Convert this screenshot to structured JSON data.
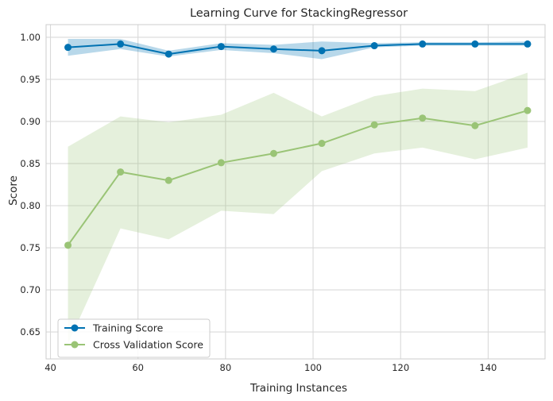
{
  "chart_data": {
    "type": "line",
    "title": "Learning Curve for StackingRegressor",
    "xlabel": "Training Instances",
    "ylabel": "Score",
    "xlim": [
      39,
      153
    ],
    "ylim": [
      0.618,
      1.015
    ],
    "xticks": [
      40,
      60,
      80,
      100,
      120,
      140
    ],
    "yticks": [
      0.65,
      0.7,
      0.75,
      0.8,
      0.85,
      0.9,
      0.95,
      1.0
    ],
    "xtick_labels": [
      "40",
      "60",
      "80",
      "100",
      "120",
      "140"
    ],
    "ytick_labels": [
      "0.65",
      "0.70",
      "0.75",
      "0.80",
      "0.85",
      "0.90",
      "0.95",
      "1.00"
    ],
    "grid": true,
    "legend_position": "bottom-left",
    "x": [
      44,
      56,
      67,
      79,
      91,
      102,
      114,
      125,
      137,
      149
    ],
    "series": [
      {
        "name": "Training Score",
        "color": "#0072b2",
        "band_color": "#0072b2",
        "values": [
          0.988,
          0.992,
          0.98,
          0.989,
          0.986,
          0.984,
          0.99,
          0.992,
          0.992,
          0.992
        ],
        "band_upper": [
          0.998,
          0.998,
          0.984,
          0.993,
          0.991,
          0.995,
          0.993,
          0.994,
          0.994,
          0.995
        ],
        "band_lower": [
          0.978,
          0.986,
          0.977,
          0.985,
          0.981,
          0.974,
          0.988,
          0.99,
          0.99,
          0.99
        ]
      },
      {
        "name": "Cross Validation Score",
        "color": "#9ac476",
        "band_color": "#9ac476",
        "values": [
          0.753,
          0.84,
          0.83,
          0.851,
          0.862,
          0.874,
          0.896,
          0.904,
          0.895,
          0.913
        ],
        "band_upper": [
          0.87,
          0.906,
          0.899,
          0.908,
          0.934,
          0.906,
          0.93,
          0.939,
          0.936,
          0.958
        ],
        "band_lower": [
          0.636,
          0.773,
          0.76,
          0.794,
          0.79,
          0.841,
          0.862,
          0.869,
          0.855,
          0.869
        ]
      }
    ]
  }
}
